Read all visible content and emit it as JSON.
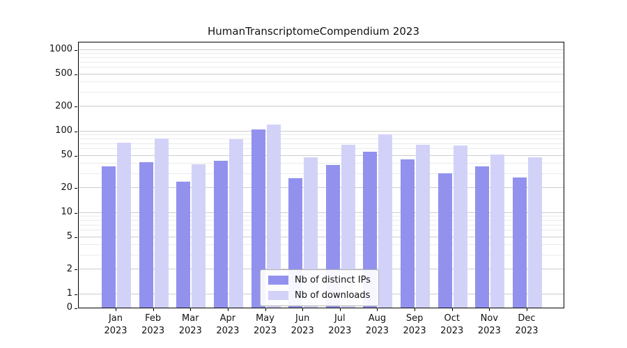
{
  "chart_data": {
    "type": "bar",
    "title": "HumanTranscriptomeCompendium 2023",
    "scale": "symlog",
    "grid": true,
    "legend_position": "lower center",
    "categories": [
      "Jan",
      "Feb",
      "Mar",
      "Apr",
      "May",
      "Jun",
      "Jul",
      "Aug",
      "Sep",
      "Oct",
      "Nov",
      "Dec"
    ],
    "year": "2023",
    "series": [
      {
        "name": "Nb of distinct IPs",
        "color": "#9292ee",
        "values": [
          37,
          41,
          24,
          43,
          105,
          26,
          38,
          55,
          45,
          30,
          37,
          27
        ]
      },
      {
        "name": "Nb of downloads",
        "color": "#d2d2f8",
        "values": [
          72,
          81,
          39,
          79,
          120,
          47,
          68,
          90,
          68,
          66,
          51,
          47
        ]
      }
    ],
    "yticks": [
      0,
      1,
      2,
      5,
      10,
      20,
      50,
      100,
      200,
      500,
      1000
    ],
    "ylim": [
      0,
      1300
    ],
    "xlabel": "",
    "ylabel": ""
  }
}
